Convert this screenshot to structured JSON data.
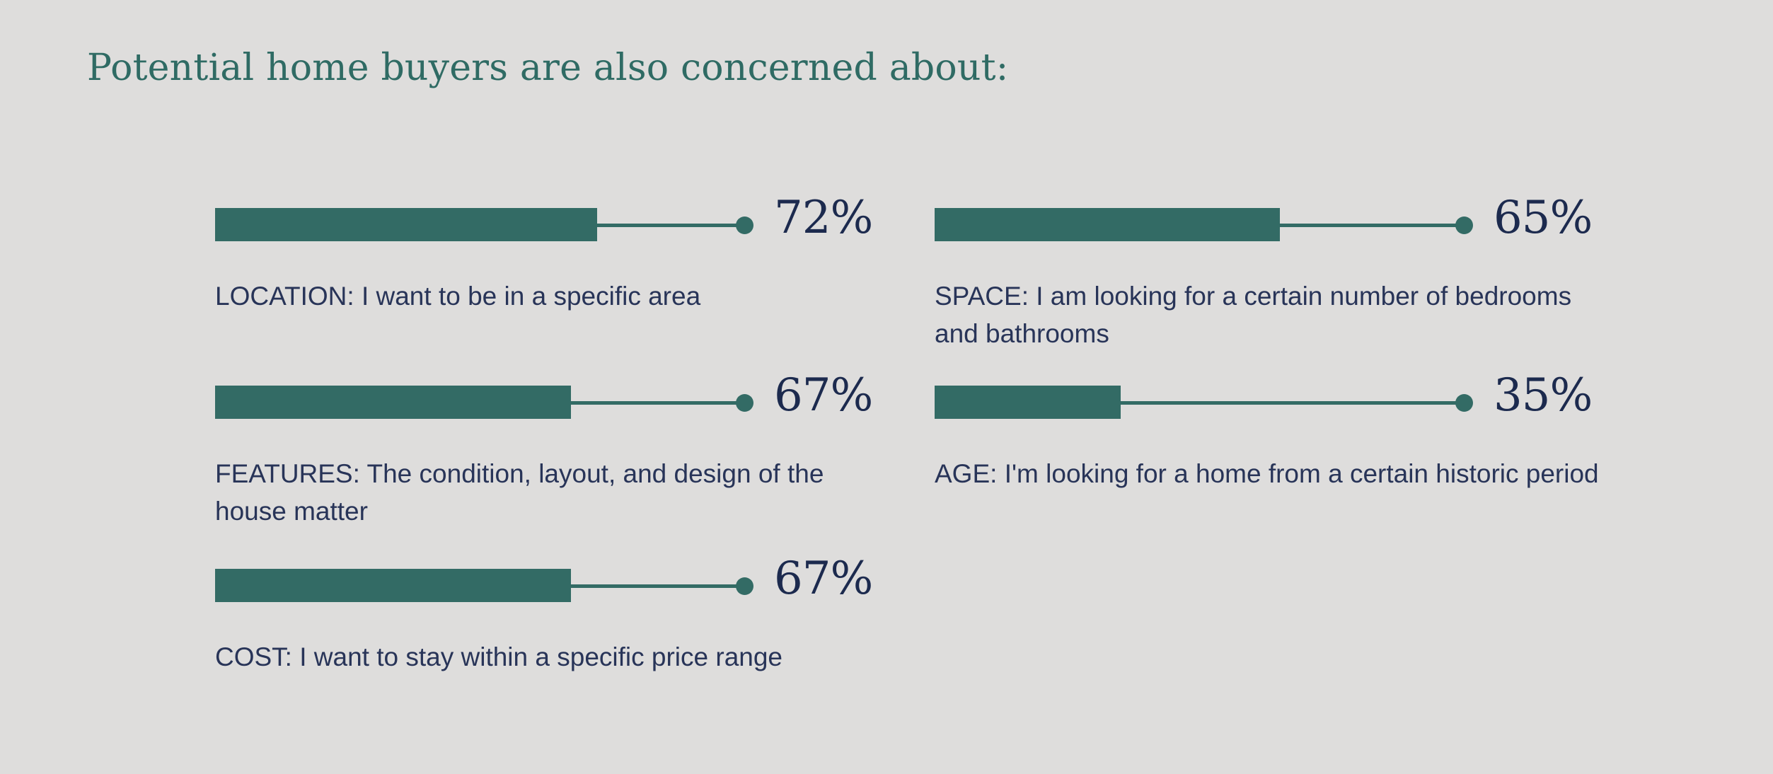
{
  "title": "Potential home buyers are also concerned about:",
  "colors": {
    "background": "#dedddc",
    "bar": "#336b65",
    "title": "#2f6b64",
    "percent_text": "#1c2a4e",
    "description_text": "#283458"
  },
  "chart_data": {
    "type": "bar",
    "orientation": "horizontal",
    "unit": "%",
    "items": [
      {
        "id": "location",
        "value": 72,
        "label": "72%",
        "description": "LOCATION: I want to be in a specific area"
      },
      {
        "id": "space",
        "value": 65,
        "label": "65%",
        "description": "SPACE:  I am looking for a certain number of bedrooms and bathrooms"
      },
      {
        "id": "features",
        "value": 67,
        "label": "67%",
        "description": "FEATURES: The condition, layout, and design of the house matter"
      },
      {
        "id": "age",
        "value": 35,
        "label": "35%",
        "description": "AGE: I'm looking for a home from a certain historic period"
      },
      {
        "id": "cost",
        "value": 67,
        "label": "67%",
        "description": "COST: I want to stay within a specific price range"
      }
    ]
  }
}
